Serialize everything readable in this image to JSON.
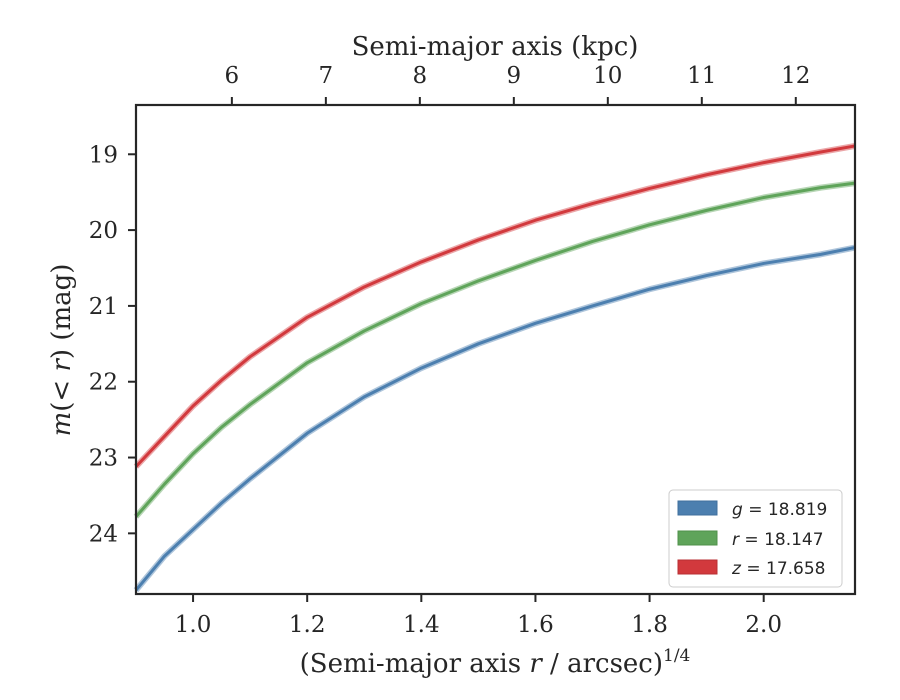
{
  "chart_data": {
    "type": "line",
    "xlabel": "(Semi-major axis r / arcsec)",
    "xlabel_italic": "r",
    "xlabel_parts": [
      "(Semi-major axis ",
      "r",
      " / arcsec)"
    ],
    "xlabel_superscript": "1/4",
    "ylabel_parts": [
      "m",
      "(< ",
      "r",
      ") (mag)"
    ],
    "top_xlabel": "Semi-major axis (kpc)",
    "xlim": [
      0.9,
      2.16
    ],
    "ylim": [
      24.8,
      18.35
    ],
    "y_inverted": true,
    "top_xlim_kpc": [
      4.98,
      12.63
    ],
    "x_ticks": [
      {
        "value": 1.0,
        "label": "1.0"
      },
      {
        "value": 1.2,
        "label": "1.2"
      },
      {
        "value": 1.4,
        "label": "1.4"
      },
      {
        "value": 1.6,
        "label": "1.6"
      },
      {
        "value": 1.8,
        "label": "1.8"
      },
      {
        "value": 2.0,
        "label": "2.0"
      }
    ],
    "y_ticks": [
      {
        "value": 19,
        "label": "19"
      },
      {
        "value": 20,
        "label": "20"
      },
      {
        "value": 21,
        "label": "21"
      },
      {
        "value": 22,
        "label": "22"
      },
      {
        "value": 23,
        "label": "23"
      },
      {
        "value": 24,
        "label": "24"
      }
    ],
    "top_ticks": [
      {
        "value": 6,
        "label": "6"
      },
      {
        "value": 7,
        "label": "7"
      },
      {
        "value": 8,
        "label": "8"
      },
      {
        "value": 9,
        "label": "9"
      },
      {
        "value": 10,
        "label": "10"
      },
      {
        "value": 11,
        "label": "11"
      },
      {
        "value": 12,
        "label": "12"
      }
    ],
    "legend": {
      "placement": "lower-right",
      "entries": [
        {
          "band": "g",
          "value": "18.819",
          "label": "g = 18.819"
        },
        {
          "band": "r",
          "value": "18.147",
          "label": "r = 18.147"
        },
        {
          "band": "z",
          "value": "17.658",
          "label": "z = 17.658"
        }
      ]
    },
    "series": [
      {
        "name": "g = 18.819",
        "color": "#4C7FAF",
        "x": [
          0.9,
          0.95,
          1.0,
          1.05,
          1.1,
          1.2,
          1.3,
          1.4,
          1.5,
          1.6,
          1.7,
          1.8,
          1.9,
          2.0,
          2.1,
          2.16
        ],
        "y": [
          24.75,
          24.3,
          23.95,
          23.6,
          23.28,
          22.68,
          22.2,
          21.82,
          21.5,
          21.23,
          21.0,
          20.78,
          20.6,
          20.44,
          20.32,
          20.23
        ]
      },
      {
        "name": "r = 18.147",
        "color": "#5FA45A",
        "x": [
          0.9,
          0.95,
          1.0,
          1.05,
          1.1,
          1.2,
          1.3,
          1.4,
          1.5,
          1.6,
          1.7,
          1.8,
          1.9,
          2.0,
          2.1,
          2.16
        ],
        "y": [
          23.78,
          23.35,
          22.95,
          22.6,
          22.3,
          21.75,
          21.33,
          20.97,
          20.67,
          20.4,
          20.15,
          19.93,
          19.74,
          19.57,
          19.44,
          19.38
        ]
      },
      {
        "name": "z = 17.658",
        "color": "#D2393D",
        "x": [
          0.9,
          0.95,
          1.0,
          1.05,
          1.1,
          1.2,
          1.3,
          1.4,
          1.5,
          1.6,
          1.7,
          1.8,
          1.9,
          2.0,
          2.1,
          2.16
        ],
        "y": [
          23.12,
          22.72,
          22.32,
          21.98,
          21.67,
          21.15,
          20.75,
          20.42,
          20.13,
          19.87,
          19.65,
          19.45,
          19.27,
          19.11,
          18.97,
          18.89
        ]
      }
    ]
  }
}
